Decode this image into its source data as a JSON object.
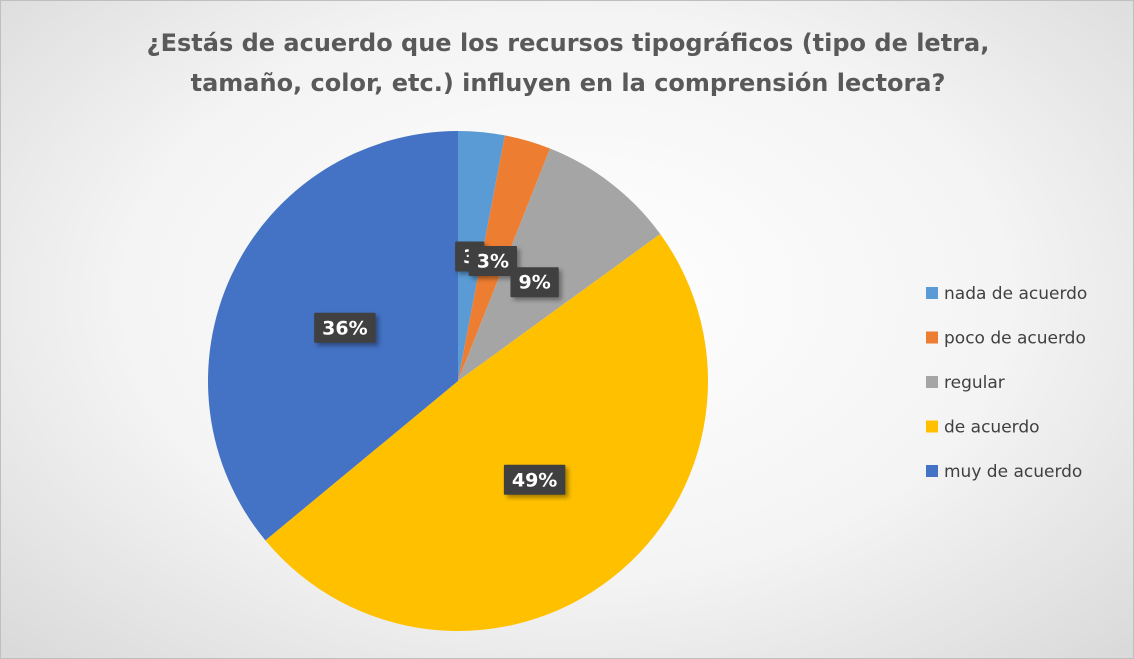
{
  "chart_data": {
    "type": "pie",
    "title": "¿Estás de acuerdo que los recursos tipográficos (tipo de letra, tamaño, color, etc.) influyen en la comprensión lectora?",
    "categories": [
      "nada de acuerdo",
      "poco de acuerdo",
      "regular",
      "de acuerdo",
      "muy de acuerdo"
    ],
    "values": [
      3,
      3,
      9,
      49,
      36
    ],
    "value_labels": [
      "3",
      "3%",
      "9%",
      "49%",
      "36%"
    ],
    "colors": [
      "#5b9bd5",
      "#ed7d31",
      "#a5a5a5",
      "#ffc000",
      "#4472c4"
    ],
    "legend": "right"
  }
}
